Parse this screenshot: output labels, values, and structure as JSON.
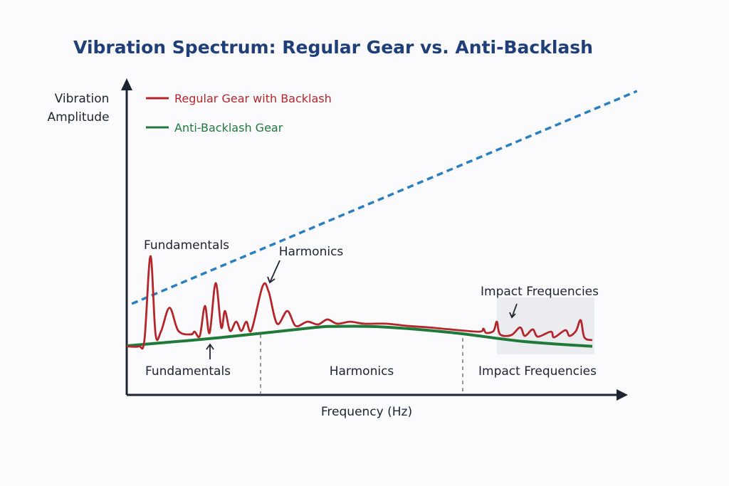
{
  "chart_data": {
    "type": "line",
    "title": "Vibration Spectrum: Regular Gear vs. Anti-Backlash",
    "xlabel": "Frequency (Hz)",
    "ylabel": [
      "Vibration",
      "Amplitude"
    ],
    "xlim": [
      0,
      100
    ],
    "ylim": [
      0,
      120
    ],
    "grid": false,
    "legend_position": "top-left",
    "legend": [
      "Regular Gear with Backlash",
      "Anti-Backlash Gear"
    ],
    "series": [
      {
        "name": "Regular Gear with Backlash",
        "color": "#b5262b",
        "x": [
          0,
          2.6,
          3.8,
          5.1,
          6.2,
          7.4,
          9.2,
          11.1,
          13.8,
          14.6,
          15.7,
          16.8,
          17.8,
          19.1,
          20.3,
          21.1,
          22.2,
          23.5,
          24.6,
          25.7,
          26.8,
          29.2,
          30.5,
          32.3,
          34.5,
          36.3,
          38.8,
          41.1,
          43.1,
          45.2,
          48,
          51,
          55.7,
          60.3,
          64.9,
          69.5,
          75.7,
          76.6,
          77.2,
          78.8,
          79.5,
          80.2,
          82.6,
          84.5,
          85.5,
          87.2,
          88.3,
          91.1,
          91.8,
          94.2,
          95.1,
          96.5,
          97.5,
          98.3,
          100
        ],
        "y": [
          19.5,
          19.5,
          22,
          55.7,
          24.3,
          25.7,
          35,
          25.7,
          24.3,
          25.4,
          23.7,
          35.7,
          24.9,
          44.9,
          27.1,
          33.7,
          25.7,
          29.4,
          25.7,
          29.4,
          26,
          43.7,
          41.4,
          28.6,
          33.7,
          27.7,
          29.4,
          28.3,
          30.3,
          28.6,
          29.4,
          28.6,
          28.6,
          27.7,
          27.1,
          26.3,
          25.4,
          26.6,
          24.9,
          25.7,
          29.4,
          24.3,
          24,
          27.1,
          23.7,
          26.3,
          23.4,
          25.4,
          23.1,
          26,
          23.7,
          25.7,
          30,
          23.1,
          22
        ]
      },
      {
        "name": "Anti-Backlash Gear",
        "color": "#1f7a3a",
        "x": [
          0,
          20,
          40,
          45,
          55,
          70,
          85,
          100
        ],
        "y": [
          19.7,
          23,
          27,
          27.5,
          27.3,
          25,
          21.5,
          19.5
        ]
      },
      {
        "name": "trend",
        "color": "#2a7fc1",
        "dashed": true,
        "x": [
          1.1,
          109.6
        ],
        "y": [
          36.6,
          122
        ]
      }
    ],
    "regions": [
      {
        "label": "Fundamentals",
        "x_end": 28.7
      },
      {
        "label": "Harmonics",
        "x_end": 72.2
      },
      {
        "label": "Impact Frequencies",
        "x_end": 100
      }
    ],
    "annotations": [
      {
        "text": "Fundamentals"
      },
      {
        "text": "Harmonics"
      },
      {
        "text": "Impact Frequencies"
      }
    ]
  }
}
